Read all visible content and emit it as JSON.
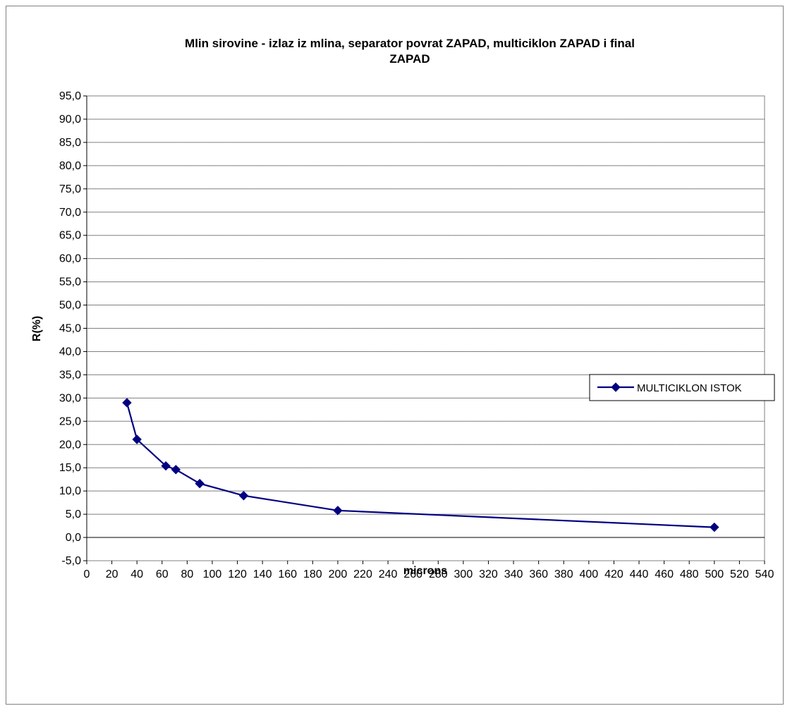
{
  "chart_data": {
    "type": "line",
    "title_lines": [
      "Mlin sirovine - izlaz iz mlina, separator povrat ZAPAD, multiciklon ZAPAD i final",
      "ZAPAD"
    ],
    "xlabel": "microns",
    "ylabel": "R(%)",
    "xlim": [
      0,
      540
    ],
    "ylim": [
      -5,
      95
    ],
    "x_ticks": [
      0,
      20,
      40,
      60,
      80,
      100,
      120,
      140,
      160,
      180,
      200,
      220,
      240,
      260,
      280,
      300,
      320,
      340,
      360,
      380,
      400,
      420,
      440,
      460,
      480,
      500,
      520,
      540
    ],
    "y_ticks": [
      -5,
      0,
      5,
      10,
      15,
      20,
      25,
      30,
      35,
      40,
      45,
      50,
      55,
      60,
      65,
      70,
      75,
      80,
      85,
      90,
      95
    ],
    "y_tick_labels": [
      "-5,0",
      "0,0",
      "5,0",
      "10,0",
      "15,0",
      "20,0",
      "25,0",
      "30,0",
      "35,0",
      "40,0",
      "45,0",
      "50,0",
      "55,0",
      "60,0",
      "65,0",
      "70,0",
      "75,0",
      "80,0",
      "85,0",
      "90,0",
      "95,0"
    ],
    "grid": "horizontal",
    "legend_position": "right",
    "series": [
      {
        "name": "MULTICIKLON ISTOK",
        "color": "#000080",
        "marker": "diamond",
        "x": [
          32,
          40,
          63,
          71,
          90,
          125,
          200,
          500
        ],
        "y": [
          29.0,
          21.1,
          15.4,
          14.6,
          11.6,
          9.0,
          5.8,
          2.2
        ]
      }
    ]
  }
}
